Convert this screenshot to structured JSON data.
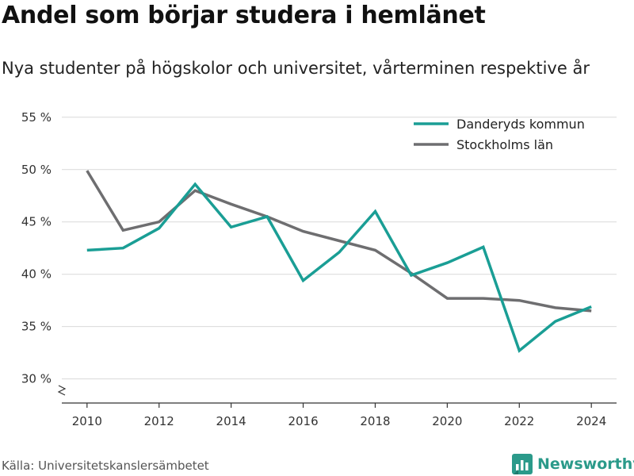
{
  "chart_data": {
    "type": "line",
    "title": "Andel som börjar studera i hemlänet",
    "subtitle": "Nya studenter på högskolor och universitet, vårterminen respektive år",
    "x": [
      2010,
      2011,
      2012,
      2013,
      2014,
      2015,
      2016,
      2017,
      2018,
      2019,
      2020,
      2021,
      2022,
      2023,
      2024
    ],
    "x_ticks": [
      2010,
      2012,
      2014,
      2016,
      2018,
      2020,
      2022,
      2024
    ],
    "x_tick_labels": [
      "2010",
      "2012",
      "2014",
      "2016",
      "2018",
      "2020",
      "2022",
      "2024"
    ],
    "y_ticks": [
      30,
      35,
      40,
      45,
      50,
      55
    ],
    "y_tick_labels": [
      "30 %",
      "35 %",
      "40 %",
      "45 %",
      "50 %",
      "55 %"
    ],
    "xlim": [
      2009.3,
      2024.7
    ],
    "ylim": [
      27.7,
      56.5
    ],
    "grid": "horizontal",
    "axis_break": true,
    "legend_position": "top-right",
    "series": [
      {
        "name": "Danderyds kommun",
        "color": "#1a9e95",
        "values": [
          42.3,
          42.5,
          44.4,
          48.6,
          44.5,
          45.5,
          39.4,
          42.1,
          46.0,
          39.9,
          41.1,
          42.6,
          32.7,
          35.5,
          36.9
        ]
      },
      {
        "name": "Stockholms län",
        "color": "#6e6e70",
        "values": [
          49.9,
          44.2,
          45.0,
          48.0,
          46.7,
          45.5,
          44.1,
          43.2,
          42.3,
          40.1,
          37.7,
          37.7,
          37.5,
          36.8,
          36.5
        ]
      }
    ]
  },
  "footer": {
    "source": "Källa: Universitetskanslersämbetet",
    "brand": "Newsworthy",
    "brand_color": "#2b9a8a",
    "brand_icon": "bar-chart-logo-icon"
  }
}
